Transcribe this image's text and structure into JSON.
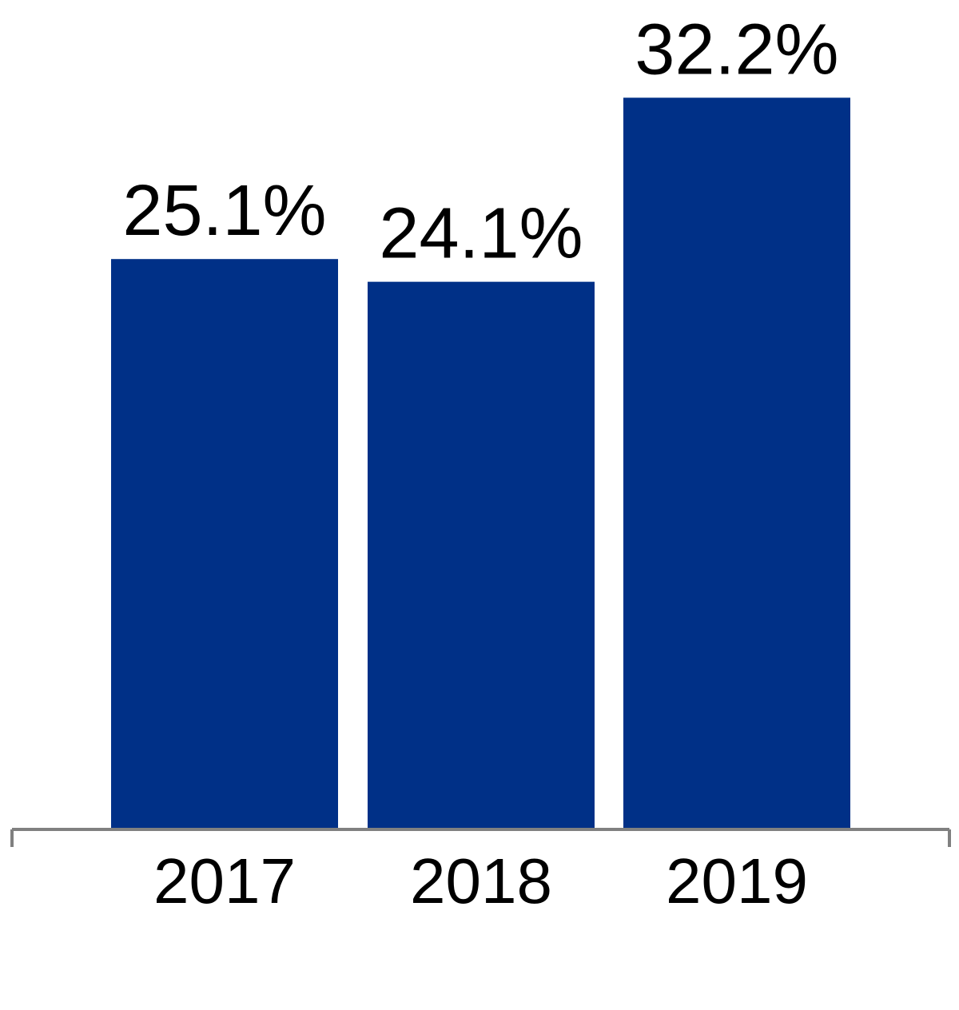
{
  "chart_data": {
    "type": "bar",
    "title": "",
    "xlabel": "",
    "ylabel": "",
    "categories": [
      "2017",
      "2018",
      "2019"
    ],
    "values": [
      25.1,
      24.1,
      32.2
    ],
    "value_labels": [
      "25.1%",
      "24.1%",
      "32.2%"
    ],
    "ylim": [
      0,
      36.5
    ],
    "grid": false,
    "legend": "none",
    "colors": {
      "bar": "#003087",
      "axis": "#808080",
      "text": "#000000"
    }
  }
}
